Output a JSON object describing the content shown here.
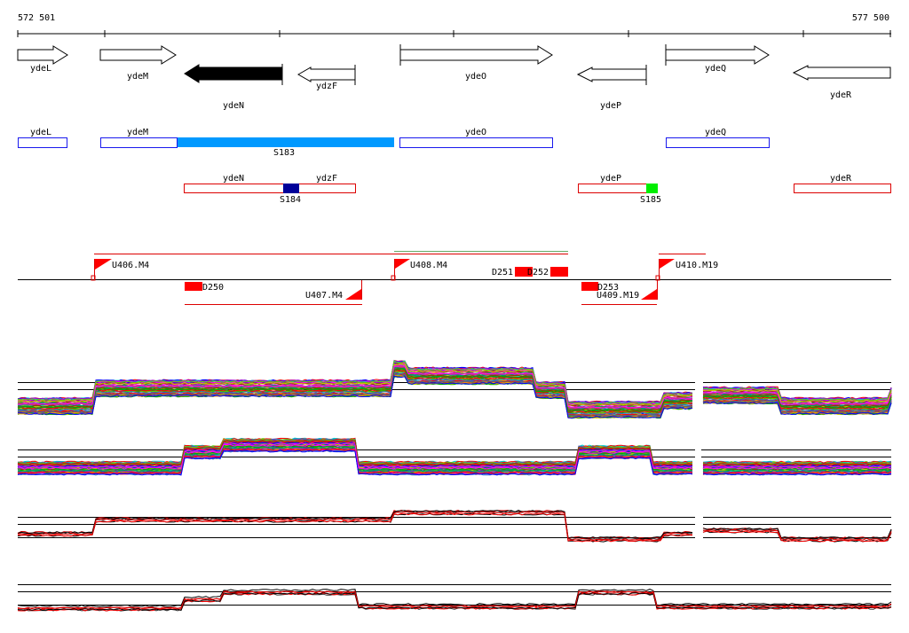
{
  "coords": {
    "start": "572 501",
    "end": "577 500"
  },
  "genes": [
    {
      "name": "ydeL",
      "dir": "right",
      "filled": false
    },
    {
      "name": "ydeM",
      "dir": "right",
      "filled": false
    },
    {
      "name": "ydeN",
      "dir": "left",
      "filled": true
    },
    {
      "name": "ydzF",
      "dir": "left",
      "filled": false
    },
    {
      "name": "ydeO",
      "dir": "right",
      "filled": false
    },
    {
      "name": "ydeP",
      "dir": "left",
      "filled": false
    },
    {
      "name": "ydeQ",
      "dir": "right",
      "filled": false
    },
    {
      "name": "ydeR",
      "dir": "left",
      "filled": false
    }
  ],
  "fwd_transcripts": [
    {
      "name": "ydeL"
    },
    {
      "name": "ydeM"
    },
    {
      "name": "ydeO"
    },
    {
      "name": "ydeQ"
    }
  ],
  "fwd_segment": {
    "name": "S183",
    "color": "#0099ff"
  },
  "rev_transcripts": [
    {
      "name": "ydeN"
    },
    {
      "name": "ydzF"
    },
    {
      "name": "ydeP"
    },
    {
      "name": "ydeR"
    }
  ],
  "rev_segments": [
    {
      "name": "S184",
      "color": "#000099"
    },
    {
      "name": "S185",
      "color": "#00ee00"
    }
  ],
  "upshifts": [
    {
      "name": "U406.M4"
    },
    {
      "name": "U407.M4"
    },
    {
      "name": "U408.M4"
    },
    {
      "name": "U409.M19"
    },
    {
      "name": "U410.M19"
    }
  ],
  "downshifts": [
    {
      "name": "D250"
    },
    {
      "name": "D251"
    },
    {
      "name": "D252"
    },
    {
      "name": "D253"
    }
  ],
  "colors": {
    "forward": "#1a1aee",
    "reverse": "#dd0000",
    "shift": "#ff0000",
    "gene_fill": "#000000",
    "alt_line": "#66aa66"
  }
}
